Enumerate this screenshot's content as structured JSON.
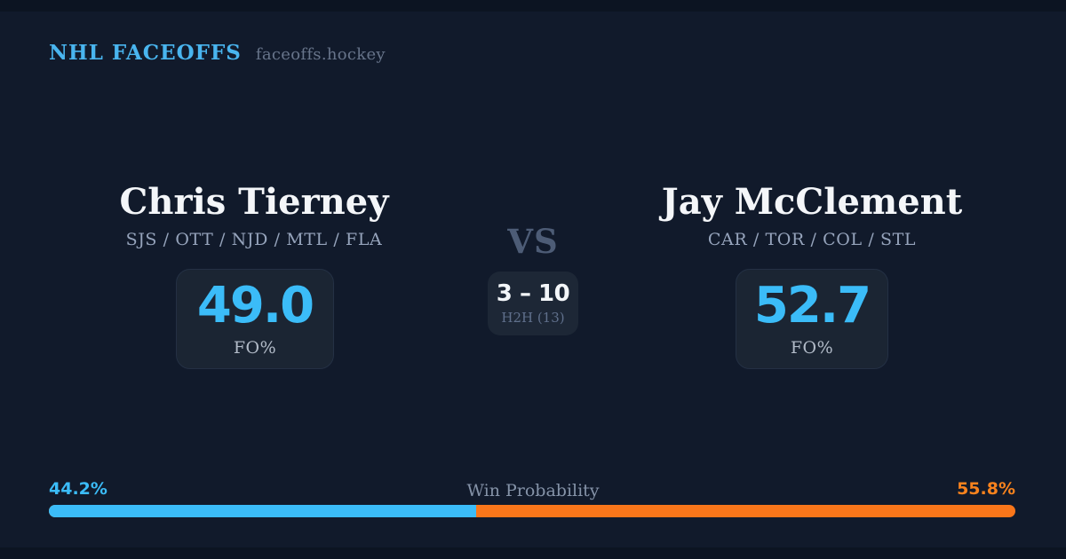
{
  "header": {
    "brand": "NHL FACEOFFS",
    "tagline": "faceoffs.hockey"
  },
  "players": {
    "left": {
      "name": "Chris Tierney",
      "teams": "SJS / OTT / NJD / MTL / FLA",
      "fo_value": "49.0",
      "fo_label": "FO%"
    },
    "right": {
      "name": "Jay McClement",
      "teams": "CAR / TOR / COL / STL",
      "fo_value": "52.7",
      "fo_label": "FO%"
    }
  },
  "center": {
    "vs_label": "VS",
    "h2h_score": "3 – 10",
    "h2h_label": "H2H (13)"
  },
  "win_probability": {
    "label": "Win Probability",
    "left_pct_text": "44.2%",
    "right_pct_text": "55.8%",
    "left_value": 44.2,
    "right_value": 55.8
  },
  "colors": {
    "background": "#111a2b",
    "edge_band": "#0c1422",
    "accent_blue": "#3bbcf8",
    "accent_orange": "#f9761a",
    "text_primary": "#f4f6f9",
    "text_muted": "#96a4bc"
  }
}
